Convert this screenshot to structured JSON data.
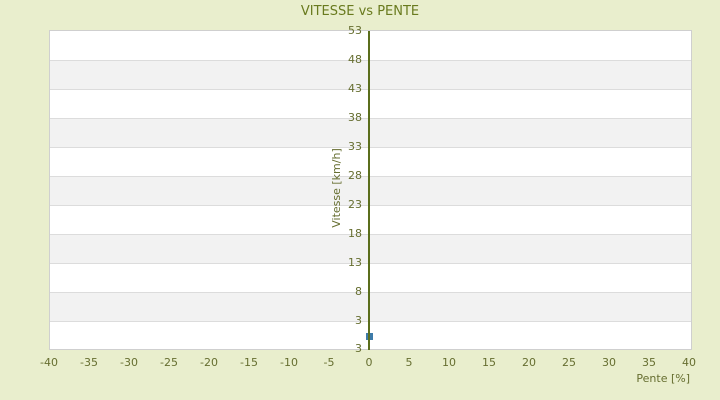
{
  "title": "VITESSE vs PENTE",
  "colors": {
    "background": "#e9eecd",
    "title_text": "#697a1e",
    "tick_text": "#666e30",
    "band_light": "#ffffff",
    "band_dark": "#f2f2f2",
    "grid_line": "#dcdcdc",
    "plot_border": "#cfcfcf",
    "axis_line": "#5b6e1c",
    "marker": "#3e7ba9"
  },
  "x_axis": {
    "title": "Pente [%]",
    "ticks": [
      "-40",
      "-35",
      "-30",
      "-25",
      "-20",
      "-15",
      "-10",
      "-5",
      "0",
      "5",
      "10",
      "15",
      "20",
      "25",
      "30",
      "35",
      "40"
    ]
  },
  "y_axis": {
    "title": "Vitesse [km/h]",
    "ticks": [
      "53",
      "48",
      "43",
      "38",
      "33",
      "28",
      "23",
      "18",
      "13",
      "8",
      "3"
    ],
    "min_label": "3"
  },
  "chart_data": {
    "type": "scatter",
    "title": "VITESSE vs PENTE",
    "xlabel": "Pente [%]",
    "ylabel": "Vitesse [km/h]",
    "xlim": [
      -40,
      40
    ],
    "ylim": [
      -2,
      53
    ],
    "x_tick_step": 5,
    "y_tick_step": 5,
    "grid": "horizontal-alternating-bands",
    "legend": "none",
    "zero_axis_vertical_line_at_x": 0,
    "series": [
      {
        "name": "Vitesse",
        "marker": "square",
        "color": "#3e7ba9",
        "points": [
          {
            "x": 0,
            "y": 0.4
          }
        ]
      }
    ]
  }
}
